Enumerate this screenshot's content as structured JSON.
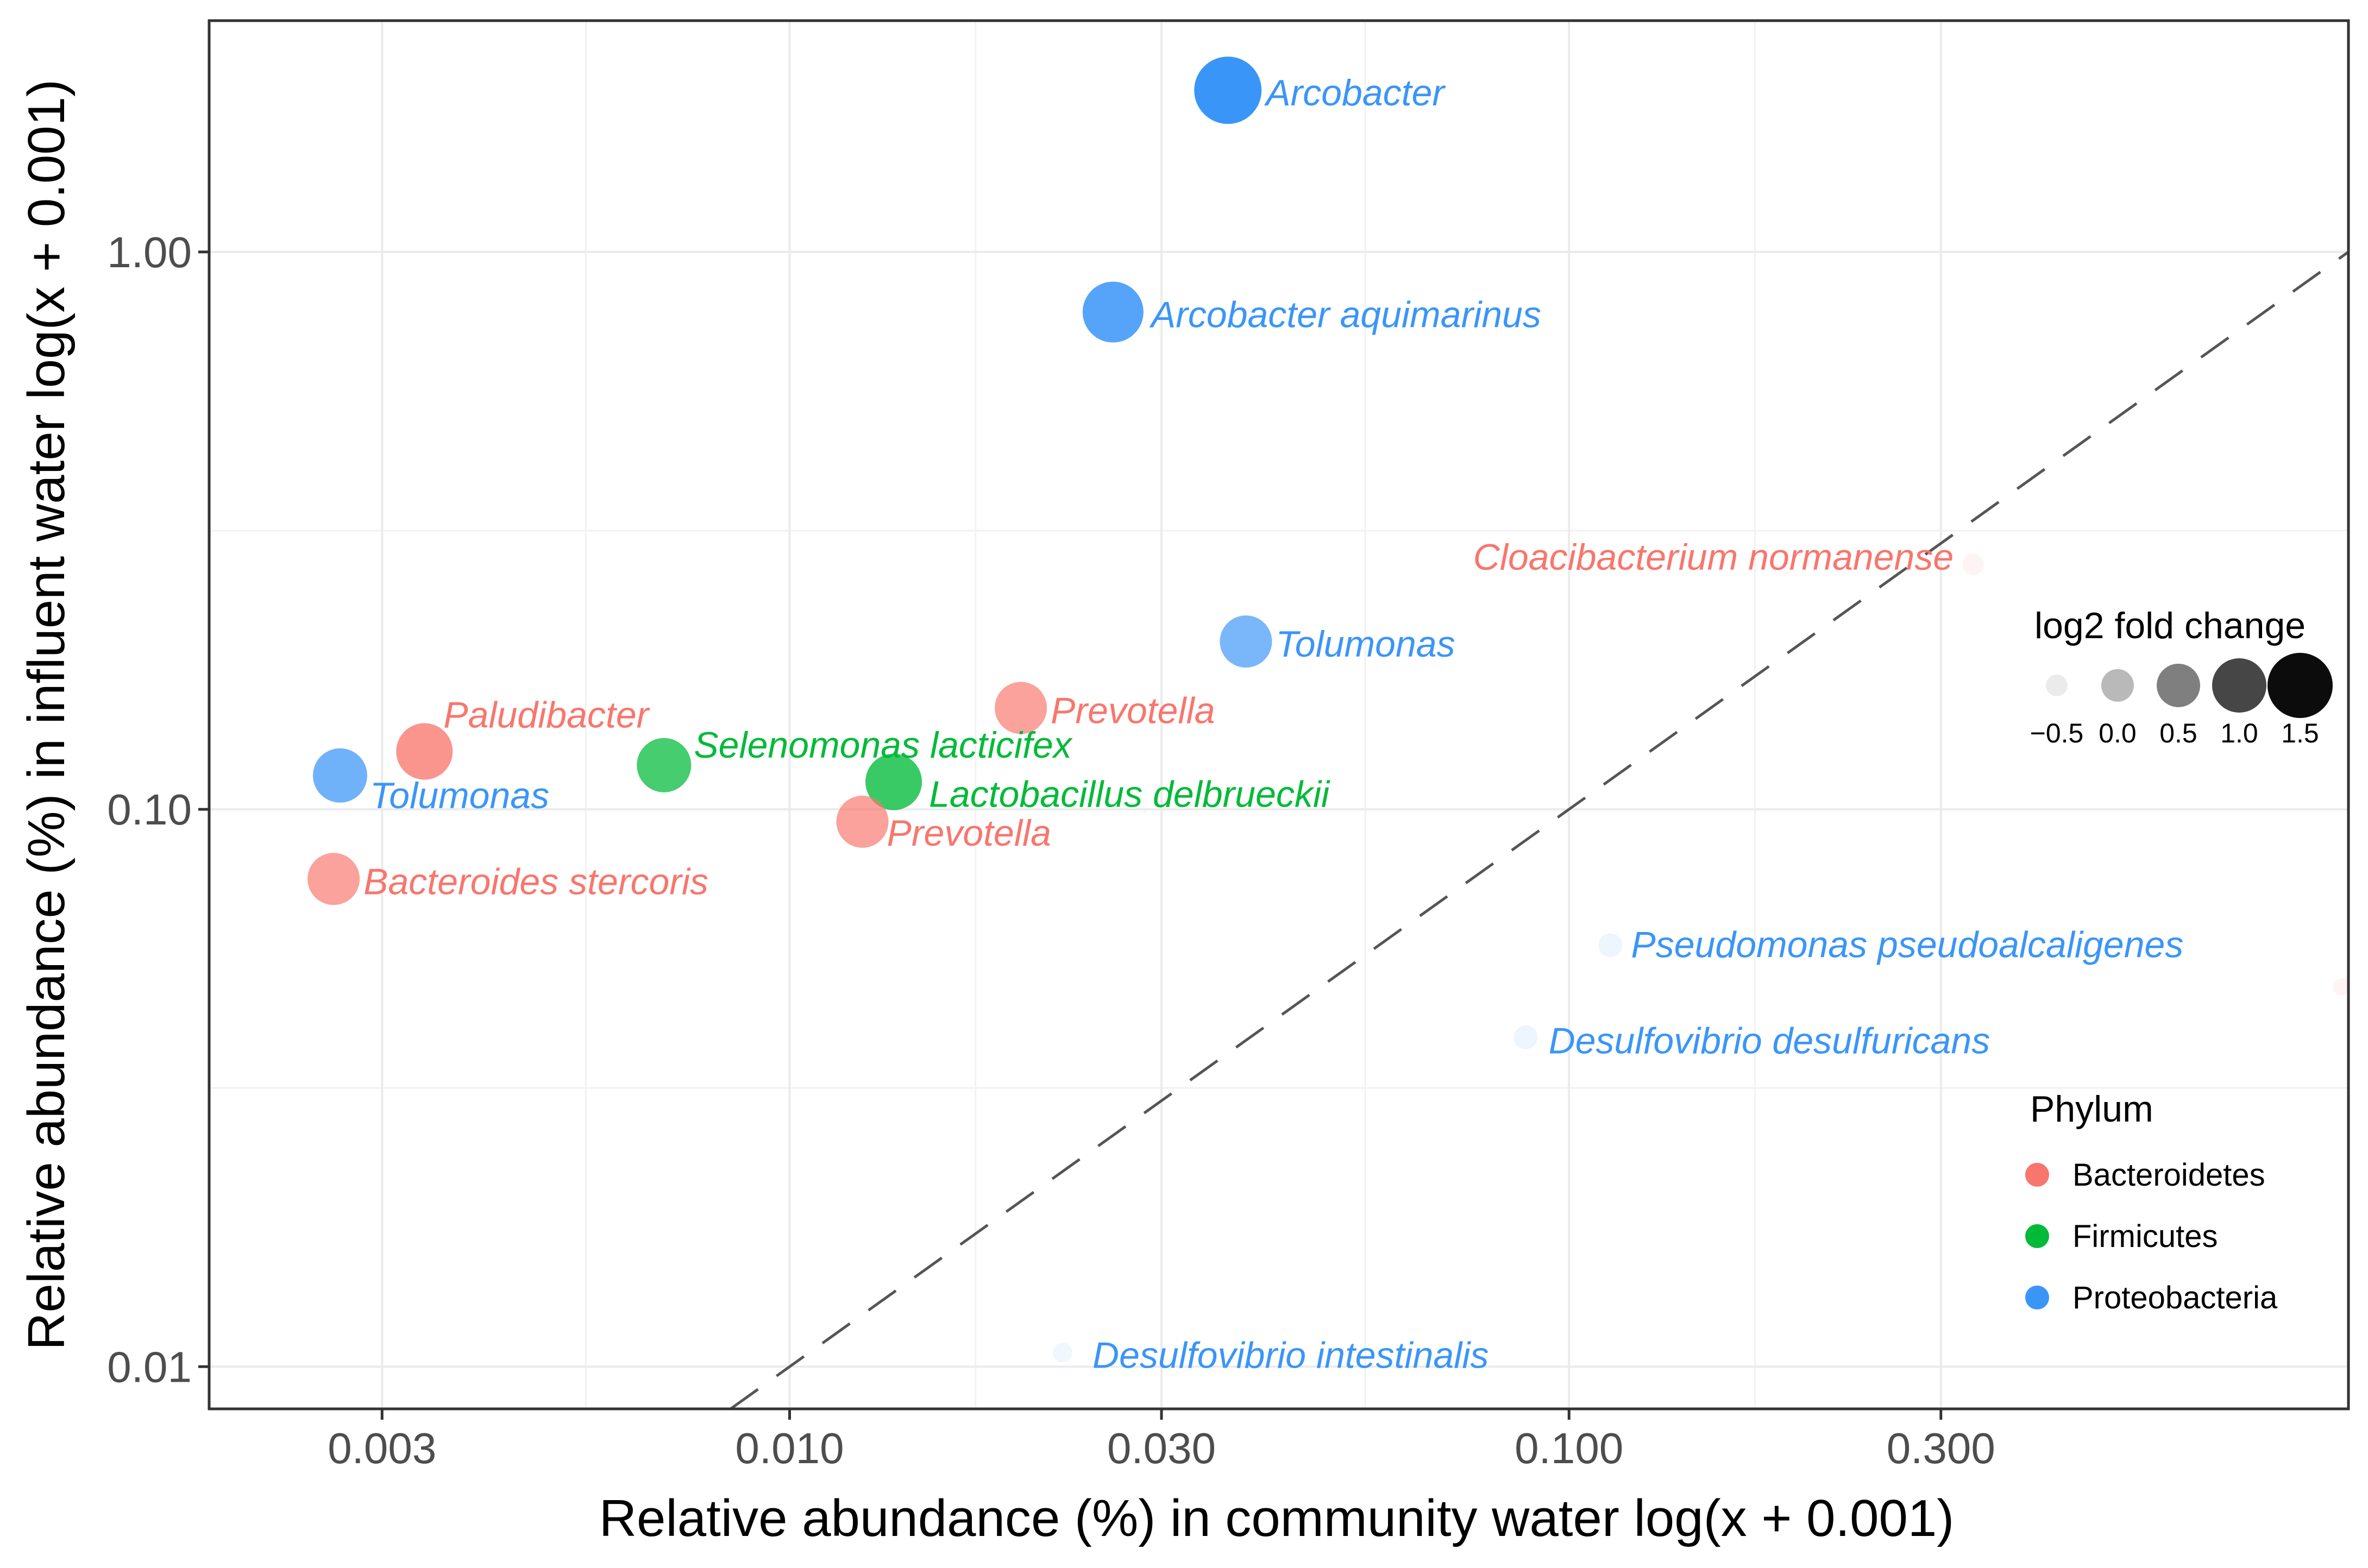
{
  "chart_data": {
    "type": "scatter",
    "xlabel": "Relative abundance (%) in community water  log(x + 0.001)",
    "ylabel": "Relative abundance (%) in influent water  log(x + 0.001)",
    "x_scale": "log",
    "y_scale": "log",
    "xlim": [
      0.0018,
      1.0
    ],
    "ylim": [
      0.0084,
      2.6
    ],
    "x_ticks": [
      {
        "value": 0.003,
        "label": "0.003"
      },
      {
        "value": 0.01,
        "label": "0.010"
      },
      {
        "value": 0.03,
        "label": "0.030"
      },
      {
        "value": 0.1,
        "label": "0.100"
      },
      {
        "value": 0.3,
        "label": "0.300"
      }
    ],
    "y_ticks": [
      {
        "value": 0.01,
        "label": "0.01"
      },
      {
        "value": 0.1,
        "label": "0.10"
      },
      {
        "value": 1.0,
        "label": "1.00"
      }
    ],
    "reference_line": {
      "type": "identity",
      "style": "dashed",
      "color": "#555555"
    },
    "colors": {
      "Bacteroidetes": "#F8766D",
      "Firmicutes": "#00BA38",
      "Proteobacteria": "#3a95f8"
    },
    "points": [
      {
        "label": "Arcobacter",
        "phylum": "Proteobacteria",
        "x": 0.0365,
        "y": 1.95,
        "lfc": 1.6
      },
      {
        "label": "Arcobacter aquimarinus",
        "phylum": "Proteobacteria",
        "x": 0.026,
        "y": 0.78,
        "lfc": 1.3
      },
      {
        "label": "Cloacibacterium normanense",
        "phylum": "Bacteroidetes",
        "x": 0.33,
        "y": 0.275,
        "lfc": -0.5
      },
      {
        "label": "Tolumonas",
        "phylum": "Proteobacteria",
        "x": 0.0385,
        "y": 0.2,
        "lfc": 0.9
      },
      {
        "label": "Prevotella",
        "phylum": "Bacteroidetes",
        "x": 0.0198,
        "y": 0.152,
        "lfc": 0.9
      },
      {
        "label": "Paludibacter",
        "phylum": "Bacteroidetes",
        "x": 0.0034,
        "y": 0.127,
        "lfc": 1.1
      },
      {
        "label": "Selenomonas lacticifex",
        "phylum": "Firmicutes",
        "x": 0.0069,
        "y": 0.12,
        "lfc": 1.0
      },
      {
        "label": "Tolumonas",
        "phylum": "Proteobacteria",
        "x": 0.00265,
        "y": 0.115,
        "lfc": 1.0
      },
      {
        "label": "Lactobacillus delbrueckii",
        "phylum": "Firmicutes",
        "x": 0.0136,
        "y": 0.112,
        "lfc": 1.1
      },
      {
        "label": "Prevotella",
        "phylum": "Bacteroidetes",
        "x": 0.0124,
        "y": 0.095,
        "lfc": 0.9
      },
      {
        "label": "Bacteroides stercoris",
        "phylum": "Bacteroidetes",
        "x": 0.0026,
        "y": 0.075,
        "lfc": 0.9
      },
      {
        "label": "Pseudomonas pseudoalcaligenes",
        "phylum": "Proteobacteria",
        "x": 0.113,
        "y": 0.057,
        "lfc": -0.4
      },
      {
        "label": "Desulfovibrio desulfuricans",
        "phylum": "Proteobacteria",
        "x": 0.088,
        "y": 0.039,
        "lfc": -0.4
      },
      {
        "label": "Desulfovibrio intestinalis",
        "phylum": "Proteobacteria",
        "x": 0.0224,
        "y": 0.0106,
        "lfc": -0.6
      },
      {
        "label": "",
        "phylum": "Bacteroidetes",
        "x": 0.98,
        "y": 0.048,
        "lfc": -0.7
      }
    ],
    "legend_size": {
      "title": "log2 fold change",
      "entries": [
        {
          "value": -0.5,
          "label": "−0.5"
        },
        {
          "value": 0.0,
          "label": "0.0"
        },
        {
          "value": 0.5,
          "label": "0.5"
        },
        {
          "value": 1.0,
          "label": "1.0"
        },
        {
          "value": 1.5,
          "label": "1.5"
        }
      ]
    },
    "legend_color": {
      "title": "Phylum",
      "entries": [
        "Bacteroidetes",
        "Firmicutes",
        "Proteobacteria"
      ]
    }
  }
}
